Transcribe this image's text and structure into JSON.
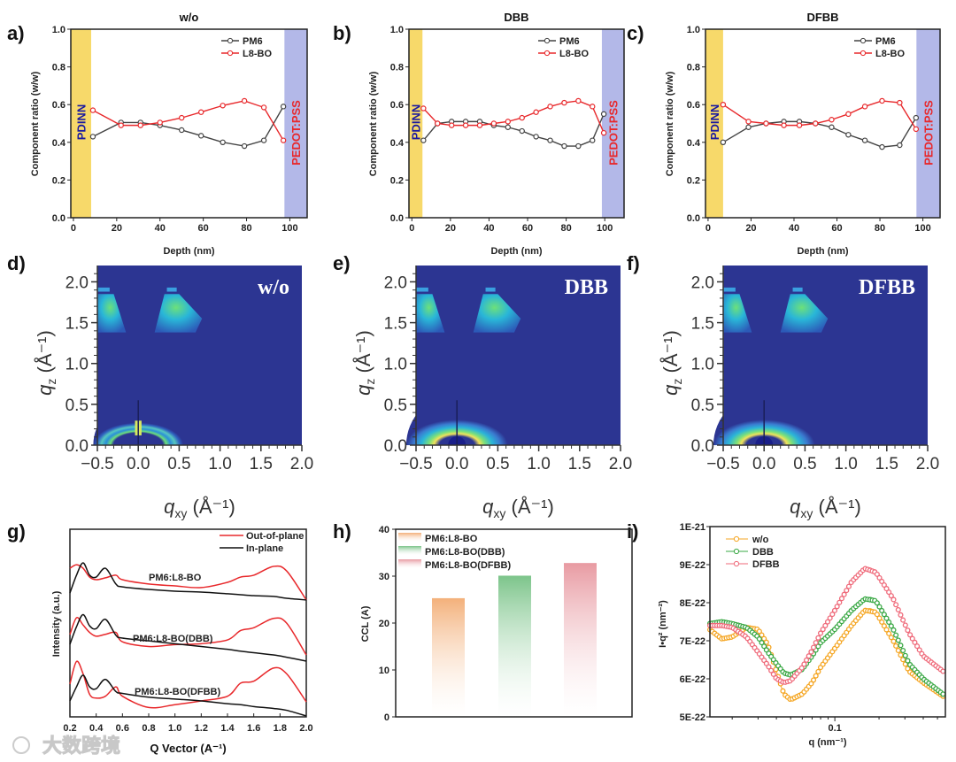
{
  "panel_labels": [
    "a)",
    "b)",
    "c)",
    "d)",
    "e)",
    "f)",
    "g)",
    "h)",
    "i)"
  ],
  "watermark": "大数跨境",
  "colors": {
    "pm6": "#444444",
    "l8bo": "#e8282b",
    "pdinn_band": "#f7d96a",
    "pedot_band": "#b3b8e8",
    "pdinn_text": "#1a1aa0",
    "pedot_text": "#e8282b",
    "giwaxs_bg": "#2c3592",
    "wo": "#f5a623",
    "dbb": "#3aa845",
    "dfbb": "#ef6a7a"
  },
  "chart_data": [
    {
      "id": "a",
      "type": "line",
      "title": "w/o",
      "xlabel": "Depth (nm)",
      "ylabel": "Component ratio (w/w)",
      "xlim": [
        -1.2,
        108
      ],
      "ylim": [
        0,
        1
      ],
      "xticks": [
        "0",
        "20",
        "40",
        "60",
        "80",
        "100"
      ],
      "yticks": [
        "0.0",
        "0.2",
        "0.4",
        "0.6",
        "0.8",
        "1.0"
      ],
      "bands": [
        {
          "label": "PDINN",
          "from": -1.2,
          "to": 8.2
        },
        {
          "label": "PEDOT:PSS",
          "from": 97.5,
          "to": 108
        }
      ],
      "x": [
        9,
        22,
        31,
        40,
        50,
        59,
        69,
        79,
        88,
        97
      ],
      "series": [
        {
          "name": "PM6",
          "values": [
            0.43,
            0.505,
            0.505,
            0.49,
            0.465,
            0.435,
            0.4,
            0.38,
            0.41,
            0.59
          ]
        },
        {
          "name": "L8-BO",
          "values": [
            0.57,
            0.49,
            0.49,
            0.505,
            0.53,
            0.56,
            0.595,
            0.62,
            0.585,
            0.41
          ]
        }
      ]
    },
    {
      "id": "b",
      "type": "line",
      "title": "DBB",
      "xlabel": "Depth (nm)",
      "ylabel": "Component ratio (w/w)",
      "xlim": [
        -1.5,
        110
      ],
      "ylim": [
        0,
        1
      ],
      "xticks": [
        "0",
        "20",
        "40",
        "60",
        "80",
        "100"
      ],
      "yticks": [
        "0.0",
        "0.2",
        "0.4",
        "0.6",
        "0.8",
        "1.0"
      ],
      "bands": [
        {
          "label": "PDINN",
          "from": -1.5,
          "to": 5.5
        },
        {
          "label": "PEDOT:PSS",
          "from": 98.5,
          "to": 110
        }
      ],
      "x": [
        6,
        13.3,
        20.6,
        27.9,
        35.2,
        42.5,
        49.8,
        57.1,
        64.4,
        71.7,
        79,
        86.3,
        93.6,
        99.5
      ],
      "series": [
        {
          "name": "PM6",
          "values": [
            0.41,
            0.5,
            0.51,
            0.51,
            0.51,
            0.49,
            0.48,
            0.46,
            0.43,
            0.41,
            0.38,
            0.38,
            0.41,
            0.55
          ]
        },
        {
          "name": "L8-BO",
          "values": [
            0.58,
            0.5,
            0.49,
            0.49,
            0.49,
            0.5,
            0.51,
            0.53,
            0.56,
            0.59,
            0.61,
            0.62,
            0.59,
            0.45
          ]
        }
      ]
    },
    {
      "id": "c",
      "type": "line",
      "title": "DFBB",
      "xlabel": "Depth (nm)",
      "ylabel": "Component ratio (w/w)",
      "xlim": [
        -1.2,
        108
      ],
      "ylim": [
        0,
        1
      ],
      "xticks": [
        "0",
        "20",
        "40",
        "60",
        "80",
        "100"
      ],
      "yticks": [
        "0.0",
        "0.2",
        "0.4",
        "0.6",
        "0.8",
        "1.0"
      ],
      "bands": [
        {
          "label": "PDINN",
          "from": -1.2,
          "to": 7
        },
        {
          "label": "PEDOT:PSS",
          "from": 97,
          "to": 108
        }
      ],
      "x": [
        7,
        18.8,
        27,
        35.3,
        42.5,
        50,
        57.5,
        65.3,
        73,
        81,
        89.2,
        96.8
      ],
      "series": [
        {
          "name": "PM6",
          "values": [
            0.4,
            0.48,
            0.5,
            0.51,
            0.51,
            0.5,
            0.48,
            0.44,
            0.41,
            0.375,
            0.385,
            0.53
          ]
        },
        {
          "name": "L8-BO",
          "values": [
            0.6,
            0.51,
            0.5,
            0.49,
            0.49,
            0.5,
            0.52,
            0.55,
            0.59,
            0.62,
            0.61,
            0.47
          ]
        }
      ]
    },
    {
      "id": "d",
      "type": "heatmap",
      "label": "w/o",
      "xlabel": "q",
      "xlabel_sub": "xy",
      "xlabel_unit": " (Å⁻¹)",
      "ylabel": "q",
      "ylabel_sub": "z",
      "ylabel_unit": " (Å⁻¹)",
      "xlim": [
        -0.5,
        2.0
      ],
      "ylim": [
        0,
        2.2
      ],
      "xticks": [
        "−0.5",
        "0.0",
        "0.5",
        "1.0",
        "1.5",
        "2.0"
      ],
      "yticks": [
        "0.0",
        "0.5",
        "1.0",
        "1.5",
        "2.0"
      ]
    },
    {
      "id": "e",
      "type": "heatmap",
      "label": "DBB",
      "xlabel": "q",
      "xlabel_sub": "xy",
      "xlabel_unit": " (Å⁻¹)",
      "ylabel": "q",
      "ylabel_sub": "z",
      "ylabel_unit": " (Å⁻¹)",
      "xlim": [
        -0.5,
        2.0
      ],
      "ylim": [
        0,
        2.2
      ],
      "xticks": [
        "−0.5",
        "0.0",
        "0.5",
        "1.0",
        "1.5",
        "2.0"
      ],
      "yticks": [
        "0.0",
        "0.5",
        "1.0",
        "1.5",
        "2.0"
      ]
    },
    {
      "id": "f",
      "type": "heatmap",
      "label": "DFBB",
      "xlabel": "q",
      "xlabel_sub": "xy",
      "xlabel_unit": " (Å⁻¹)",
      "ylabel": "q",
      "ylabel_sub": "z",
      "ylabel_unit": " (Å⁻¹)",
      "xlim": [
        -0.5,
        2.0
      ],
      "ylim": [
        0,
        2.2
      ],
      "xticks": [
        "−0.5",
        "0.0",
        "0.5",
        "1.0",
        "1.5",
        "2.0"
      ],
      "yticks": [
        "0.0",
        "0.5",
        "1.0",
        "1.5",
        "2.0"
      ]
    },
    {
      "id": "g",
      "type": "line",
      "xlabel": "Q Vector (A⁻¹)",
      "ylabel": "Intensity (a.u.)",
      "xlim": [
        0.2,
        2.0
      ],
      "ylim": [
        0,
        10
      ],
      "xticks": [
        "0.2",
        "0.4",
        "0.6",
        "0.8",
        "1.0",
        "1.2",
        "1.4",
        "1.6",
        "1.8",
        "2.0"
      ],
      "legend": [
        "Out-of-plane",
        "In-plane"
      ],
      "x": [
        0.2,
        0.25,
        0.3,
        0.35,
        0.4,
        0.47,
        0.55,
        0.6,
        0.8,
        1.0,
        1.2,
        1.4,
        1.5,
        1.6,
        1.75,
        1.85,
        2.0
      ],
      "groups": [
        {
          "name": "PM6:L8-BO",
          "out_of_plane": [
            7.92,
            8.11,
            7.92,
            7.45,
            7.31,
            7.41,
            7.55,
            7.31,
            7.08,
            6.98,
            6.89,
            7.17,
            7.45,
            7.55,
            8.02,
            7.78,
            6.23
          ],
          "in_plane": [
            6.6,
            7.55,
            8.21,
            7.55,
            7.45,
            7.92,
            7.08,
            6.93,
            6.79,
            6.7,
            6.65,
            6.56,
            6.51,
            6.46,
            6.42,
            6.32,
            6.23
          ]
        },
        {
          "name": "PM6:L8-BO(DBB)",
          "out_of_plane": [
            4.39,
            5.28,
            4.9,
            4.5,
            4.3,
            4.4,
            4.5,
            4.0,
            3.75,
            3.85,
            3.9,
            4.1,
            4.6,
            4.75,
            5.25,
            5.0,
            3.3
          ],
          "in_plane": [
            3.87,
            4.8,
            5.45,
            4.85,
            4.7,
            5.2,
            4.35,
            4.2,
            4.05,
            3.9,
            3.75,
            3.6,
            3.5,
            3.42,
            3.3,
            3.18,
            2.97
          ]
        },
        {
          "name": "PM6:L8-BO(DFBB)",
          "out_of_plane": [
            1.75,
            2.95,
            2.3,
            1.2,
            1.0,
            1.1,
            1.6,
            1.1,
            0.5,
            0.65,
            0.85,
            1.1,
            1.8,
            1.9,
            2.6,
            2.3,
            0.8
          ],
          "in_plane": [
            0.85,
            1.6,
            2.22,
            1.6,
            1.5,
            2.0,
            1.35,
            1.25,
            1.05,
            0.95,
            0.85,
            0.7,
            0.65,
            0.55,
            0.45,
            0.35,
            0.05
          ]
        }
      ]
    },
    {
      "id": "h",
      "type": "bar",
      "ylabel": "CCL (A)",
      "ylim": [
        0,
        40
      ],
      "yticks": [
        "0",
        "10",
        "20",
        "30",
        "40"
      ],
      "categories": [
        "PM6:L8-BO",
        "PM6:L8-BO(DBB)",
        "PM6:L8-BO(DFBB)"
      ],
      "values": [
        25.3,
        30.1,
        32.8
      ]
    },
    {
      "id": "i",
      "type": "scatter",
      "xlabel": "q (nm⁻¹)",
      "ylabel": "I•q² (nm⁻²)",
      "xscale": "log",
      "xlim": [
        0.0141,
        0.566
      ],
      "ylim": [
        5,
        10
      ],
      "xticks": [
        "0.1"
      ],
      "yticks": [
        "5E-22",
        "6E-22",
        "7E-22",
        "8E-22",
        "9E-22",
        "1E-21"
      ],
      "x": [
        0.014,
        0.017,
        0.02,
        0.025,
        0.03,
        0.035,
        0.04,
        0.045,
        0.05,
        0.06,
        0.07,
        0.08,
        0.1,
        0.13,
        0.16,
        0.19,
        0.25,
        0.32,
        0.4,
        0.566
      ],
      "series": [
        {
          "name": "w/o",
          "values": [
            7.3,
            7.05,
            7.1,
            7.35,
            7.3,
            6.9,
            6.2,
            5.6,
            5.45,
            5.6,
            5.9,
            6.3,
            6.8,
            7.4,
            7.8,
            7.75,
            7.0,
            6.2,
            5.9,
            5.5
          ]
        },
        {
          "name": "DBB",
          "values": [
            7.45,
            7.5,
            7.45,
            7.35,
            7.1,
            6.7,
            6.4,
            6.15,
            6.1,
            6.25,
            6.6,
            6.95,
            7.3,
            7.8,
            8.1,
            8.05,
            7.3,
            6.4,
            6.0,
            5.55
          ]
        },
        {
          "name": "DFBB",
          "values": [
            7.4,
            7.4,
            7.35,
            7.1,
            6.7,
            6.35,
            6.0,
            5.9,
            5.95,
            6.3,
            6.75,
            7.2,
            7.8,
            8.55,
            8.9,
            8.8,
            8.1,
            7.2,
            6.6,
            6.15
          ]
        }
      ]
    }
  ]
}
